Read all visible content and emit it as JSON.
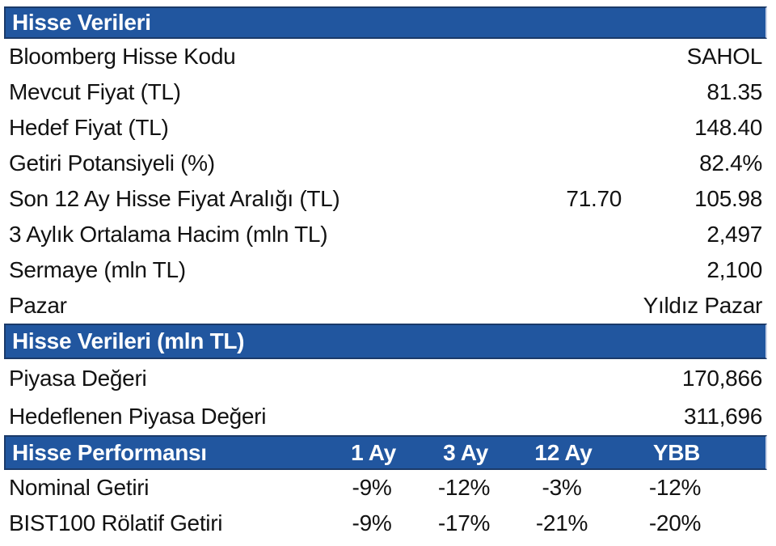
{
  "colors": {
    "header_bg": "#21569F",
    "header_border": "#1B3A69",
    "header_text": "#FFFFFF",
    "body_text": "#121212"
  },
  "sections": [
    {
      "title": "Hisse Verileri",
      "rows": [
        {
          "label": "Bloomberg Hisse Kodu",
          "mid": "",
          "value": "SAHOL"
        },
        {
          "label": "Mevcut Fiyat (TL)",
          "mid": "",
          "value": "81.35"
        },
        {
          "label": "Hedef Fiyat (TL)",
          "mid": "",
          "value": "148.40"
        },
        {
          "label": "Getiri Potansiyeli (%)",
          "mid": "",
          "value": "82.4%"
        },
        {
          "label": "Son 12 Ay Hisse Fiyat Aralığı (TL)",
          "mid": "71.70",
          "value": "105.98"
        },
        {
          "label": "3 Aylık Ortalama Hacim (mln TL)",
          "mid": "",
          "value": "2,497"
        },
        {
          "label": "Sermaye (mln TL)",
          "mid": "",
          "value": "2,100"
        },
        {
          "label": "Pazar",
          "mid": "",
          "value": "Yıldız Pazar"
        }
      ]
    },
    {
      "title": "Hisse Verileri (mln TL)",
      "rows": [
        {
          "label": "Piyasa Değeri",
          "value": "170,866"
        },
        {
          "label": "Hedeflenen Piyasa Değeri",
          "value": "311,696"
        }
      ]
    },
    {
      "title": "Hisse Performansı",
      "columns": [
        "1 Ay",
        "3 Ay",
        "12 Ay",
        "YBB"
      ],
      "rows": [
        {
          "label": "Nominal Getiri",
          "values": [
            "-9%",
            "-12%",
            "-3%",
            "-12%"
          ]
        },
        {
          "label": "BIST100 Rölatif Getiri",
          "values": [
            "-9%",
            "-17%",
            "-21%",
            "-20%"
          ]
        }
      ]
    }
  ]
}
